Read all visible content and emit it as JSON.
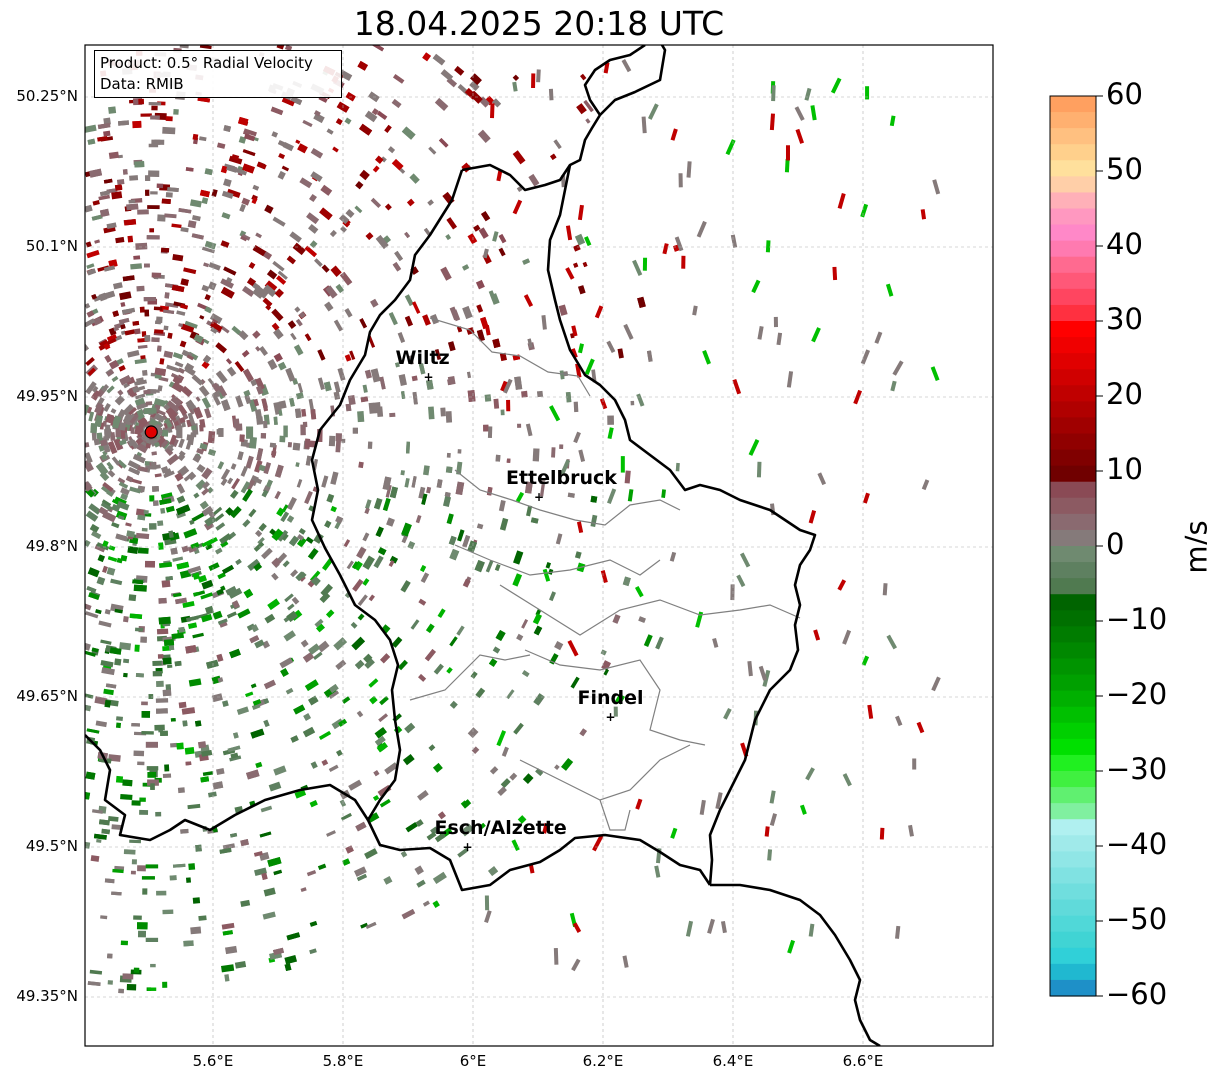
{
  "title": "18.04.2025 20:18 UTC",
  "info": {
    "product": "Product: 0.5° Radial Velocity",
    "source": "Data: RMIB"
  },
  "axes": {
    "lat_ticks": [
      "50.25°N",
      "50.1°N",
      "49.95°N",
      "49.8°N",
      "49.65°N",
      "49.5°N",
      "49.35°N"
    ],
    "lon_ticks": [
      "5.6°E",
      "5.8°E",
      "6°E",
      "6.2°E",
      "6.4°E",
      "6.6°E"
    ],
    "lon_range": [
      5.4,
      6.8
    ],
    "lat_range": [
      49.3,
      50.3
    ],
    "grid": true
  },
  "cities": [
    {
      "name": "Wiltz",
      "lon": 5.93,
      "lat": 49.97
    },
    {
      "name": "Ettelbruck",
      "lon": 6.1,
      "lat": 49.85
    },
    {
      "name": "Findel",
      "lon": 6.21,
      "lat": 49.63
    },
    {
      "name": "Esch/Alzette",
      "lon": 5.99,
      "lat": 49.5
    }
  ],
  "radar_site": {
    "lon": 5.505,
    "lat": 49.915
  },
  "colorbar": {
    "label": "m/s",
    "range": [
      -60,
      60
    ],
    "tick_labels": [
      "60",
      "50",
      "40",
      "30",
      "20",
      "10",
      "0",
      "−10",
      "−20",
      "−30",
      "−40",
      "−50",
      "−60"
    ],
    "colors_top_to_bottom": [
      "#ffa060",
      "#ffb070",
      "#ffc080",
      "#ffd08c",
      "#ffe09c",
      "#ffcfa8",
      "#ffb0b8",
      "#ff98c0",
      "#ff88c8",
      "#ff7ab0",
      "#ff6a90",
      "#ff5878",
      "#ff4560",
      "#ff3040",
      "#ff0000",
      "#f00000",
      "#e00000",
      "#d00000",
      "#c00000",
      "#b00000",
      "#a00000",
      "#900000",
      "#800000",
      "#700000",
      "#8a4a55",
      "#8c5a62",
      "#8a6a70",
      "#857a7a",
      "#6f8a70",
      "#5e8060",
      "#507a50",
      "#006400",
      "#007000",
      "#007c00",
      "#008800",
      "#009400",
      "#00a000",
      "#00b000",
      "#00c000",
      "#00d000",
      "#00e000",
      "#20f020",
      "#40f040",
      "#60f070",
      "#80f0a0",
      "#b0f0f0",
      "#a0eaea",
      "#90e6e6",
      "#80e2e2",
      "#70dede",
      "#60dada",
      "#50d8d8",
      "#40d4d4",
      "#30d0d8",
      "#20b8d0",
      "#1e90c8"
    ]
  },
  "colors": {
    "border": "#000000",
    "cantons": "#808080",
    "grid": "#b0b0b0",
    "approaching": "#00a000",
    "receding": "#a00000",
    "near_zero": "#857a7a"
  }
}
